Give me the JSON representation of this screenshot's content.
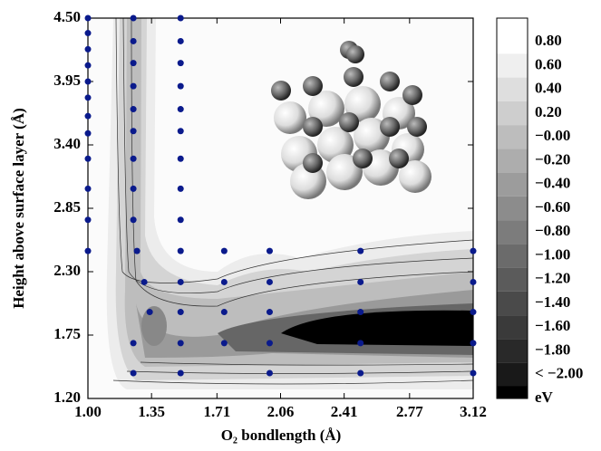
{
  "chart_data": {
    "type": "contour",
    "xlabel": "O₂  bondlength  (Å)",
    "ylabel": "Height above surface layer  (Å)",
    "xlim": [
      1.0,
      3.12
    ],
    "ylim": [
      1.2,
      4.5
    ],
    "xticks": [
      {
        "value": 1.0,
        "label": "1.00"
      },
      {
        "value": 1.35,
        "label": "1.35"
      },
      {
        "value": 1.71,
        "label": "1.71"
      },
      {
        "value": 2.06,
        "label": "2.06"
      },
      {
        "value": 2.41,
        "label": "2.41"
      },
      {
        "value": 2.77,
        "label": "2.77"
      },
      {
        "value": 3.12,
        "label": "3.12"
      }
    ],
    "yticks": [
      {
        "value": 1.2,
        "label": "1.20"
      },
      {
        "value": 1.75,
        "label": "1.75"
      },
      {
        "value": 2.3,
        "label": "2.30"
      },
      {
        "value": 2.85,
        "label": "2.85"
      },
      {
        "value": 3.4,
        "label": "3.40"
      },
      {
        "value": 3.95,
        "label": "3.95"
      },
      {
        "value": 4.5,
        "label": "4.50"
      }
    ],
    "points": {
      "color": "#0a1a8c",
      "x": [
        1.0,
        1.0,
        1.0,
        1.0,
        1.0,
        1.0,
        1.0,
        1.0,
        1.0,
        1.0,
        1.0,
        1.0,
        1.25,
        1.25,
        1.25,
        1.25,
        1.25,
        1.25,
        1.25,
        1.25,
        1.25,
        1.51,
        1.51,
        1.51,
        1.51,
        1.51,
        1.51,
        1.51,
        1.51,
        1.51,
        1.27,
        1.51,
        1.75,
        2.0,
        2.5,
        3.12,
        1.31,
        1.51,
        1.75,
        2.0,
        2.5,
        3.12,
        1.34,
        1.51,
        1.75,
        2.0,
        2.5,
        3.12,
        1.25,
        1.51,
        1.75,
        2.0,
        2.5,
        3.12,
        1.25,
        1.51,
        2.0,
        2.5,
        3.12
      ],
      "y": [
        4.5,
        4.37,
        4.23,
        4.09,
        3.95,
        3.81,
        3.65,
        3.5,
        3.28,
        3.02,
        2.75,
        2.48,
        4.5,
        4.3,
        4.11,
        3.91,
        3.71,
        3.52,
        3.28,
        3.02,
        2.75,
        4.5,
        4.3,
        4.11,
        3.91,
        3.71,
        3.52,
        3.28,
        3.02,
        2.75,
        2.48,
        2.48,
        2.48,
        2.48,
        2.48,
        2.48,
        2.21,
        2.21,
        2.21,
        2.21,
        2.21,
        2.21,
        1.95,
        1.95,
        1.95,
        1.95,
        1.95,
        1.95,
        1.68,
        1.68,
        1.68,
        1.68,
        1.68,
        1.68,
        1.42,
        1.42,
        1.42,
        1.42,
        1.42
      ]
    },
    "colorbar": {
      "label": "eV",
      "ticks": [
        {
          "value": 0.8,
          "label": "0.80"
        },
        {
          "value": 0.6,
          "label": "0.60"
        },
        {
          "value": 0.4,
          "label": "0.40"
        },
        {
          "value": 0.2,
          "label": "0.20"
        },
        {
          "value": 0.0,
          "label": "−0.00"
        },
        {
          "value": -0.2,
          "label": "−0.20"
        },
        {
          "value": -0.4,
          "label": "−0.40"
        },
        {
          "value": -0.6,
          "label": "−0.60"
        },
        {
          "value": -0.8,
          "label": "−0.80"
        },
        {
          "value": -1.0,
          "label": "−1.00"
        },
        {
          "value": -1.2,
          "label": "−1.20"
        },
        {
          "value": -1.4,
          "label": "−1.40"
        },
        {
          "value": -1.6,
          "label": "−1.60"
        },
        {
          "value": -1.8,
          "label": "−1.80"
        },
        {
          "value": -2.0,
          "label": "< −2.00"
        }
      ]
    }
  }
}
